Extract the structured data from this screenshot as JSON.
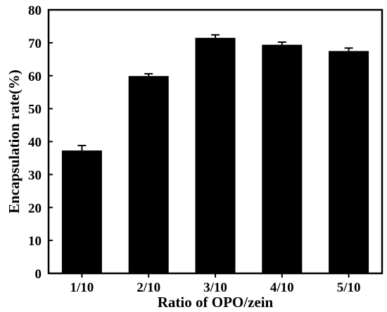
{
  "chart_data": {
    "type": "bar",
    "title": "",
    "xlabel": "Ratio of OPO/zein",
    "ylabel": "Encapsulation rate(%)",
    "categories": [
      "1/10",
      "2/10",
      "3/10",
      "4/10",
      "5/10"
    ],
    "values": [
      37.3,
      59.9,
      71.5,
      69.4,
      67.5
    ],
    "errors": [
      1.5,
      0.7,
      0.9,
      0.8,
      0.9
    ],
    "ylim": [
      0,
      80
    ],
    "yticks": [
      0,
      10,
      20,
      30,
      40,
      50,
      60,
      70,
      80
    ],
    "bar_color": "#000000",
    "grid": false,
    "legend": "none"
  }
}
